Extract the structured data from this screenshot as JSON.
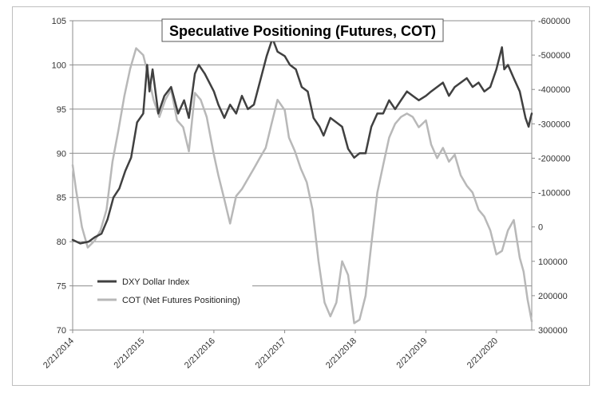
{
  "chart_data": {
    "type": "line",
    "title": "Speculative Positioning (Futures, COT)",
    "grid": true,
    "legend_placement": "bottom-left",
    "x": {
      "start": "2014-02-21",
      "end": "2020-08-21",
      "tick_labels": [
        "2/21/2014",
        "2/21/2015",
        "2/21/2016",
        "2/21/2017",
        "2/21/2018",
        "2/21/2019",
        "2/21/2020"
      ]
    },
    "y_left": {
      "min": 70,
      "max": 105,
      "step": 5,
      "tick_labels": [
        "105",
        "100",
        "95",
        "90",
        "85",
        "80",
        "75",
        "70"
      ]
    },
    "y_right": {
      "min": -600000,
      "max": 300000,
      "reversed": true,
      "step": 100000,
      "tick_labels": [
        "-600000",
        "-500000",
        "-400000",
        "-300000",
        "-200000",
        "-100000",
        "0",
        "100000",
        "200000",
        "300000"
      ]
    },
    "series": [
      {
        "name": "DXY Dollar Index",
        "axis": "left",
        "color": "#404040",
        "points": [
          [
            "2014-02-21",
            80.2
          ],
          [
            "2014-04-01",
            79.8
          ],
          [
            "2014-05-15",
            80.0
          ],
          [
            "2014-06-15",
            80.5
          ],
          [
            "2014-07-20",
            80.9
          ],
          [
            "2014-08-20",
            82.5
          ],
          [
            "2014-09-20",
            85.0
          ],
          [
            "2014-10-20",
            86.0
          ],
          [
            "2014-11-20",
            88.0
          ],
          [
            "2014-12-20",
            89.5
          ],
          [
            "2015-01-20",
            93.5
          ],
          [
            "2015-02-21",
            94.5
          ],
          [
            "2015-03-13",
            100.0
          ],
          [
            "2015-03-25",
            97.0
          ],
          [
            "2015-04-10",
            99.5
          ],
          [
            "2015-05-10",
            94.5
          ],
          [
            "2015-06-10",
            96.5
          ],
          [
            "2015-07-15",
            97.5
          ],
          [
            "2015-08-20",
            94.5
          ],
          [
            "2015-09-20",
            96.0
          ],
          [
            "2015-10-15",
            94.0
          ],
          [
            "2015-11-15",
            99.0
          ],
          [
            "2015-12-05",
            100.0
          ],
          [
            "2016-01-05",
            99.0
          ],
          [
            "2016-02-21",
            97.0
          ],
          [
            "2016-03-15",
            95.5
          ],
          [
            "2016-04-15",
            94.0
          ],
          [
            "2016-05-15",
            95.5
          ],
          [
            "2016-06-15",
            94.5
          ],
          [
            "2016-07-15",
            96.5
          ],
          [
            "2016-08-15",
            95.0
          ],
          [
            "2016-09-15",
            95.5
          ],
          [
            "2016-10-15",
            98.0
          ],
          [
            "2016-11-20",
            101.0
          ],
          [
            "2016-12-20",
            103.0
          ],
          [
            "2017-01-15",
            101.5
          ],
          [
            "2017-02-21",
            101.0
          ],
          [
            "2017-03-20",
            100.0
          ],
          [
            "2017-04-20",
            99.5
          ],
          [
            "2017-05-20",
            97.5
          ],
          [
            "2017-06-20",
            97.0
          ],
          [
            "2017-07-20",
            94.0
          ],
          [
            "2017-08-20",
            93.0
          ],
          [
            "2017-09-10",
            92.0
          ],
          [
            "2017-10-15",
            94.0
          ],
          [
            "2017-11-15",
            93.5
          ],
          [
            "2017-12-15",
            93.0
          ],
          [
            "2018-01-15",
            90.5
          ],
          [
            "2018-02-15",
            89.5
          ],
          [
            "2018-03-15",
            90.0
          ],
          [
            "2018-04-15",
            90.0
          ],
          [
            "2018-05-15",
            93.0
          ],
          [
            "2018-06-15",
            94.5
          ],
          [
            "2018-07-15",
            94.5
          ],
          [
            "2018-08-15",
            96.0
          ],
          [
            "2018-09-15",
            95.0
          ],
          [
            "2018-10-15",
            96.0
          ],
          [
            "2018-11-15",
            97.0
          ],
          [
            "2018-12-15",
            96.5
          ],
          [
            "2019-01-15",
            96.0
          ],
          [
            "2019-02-21",
            96.5
          ],
          [
            "2019-03-20",
            97.0
          ],
          [
            "2019-04-20",
            97.5
          ],
          [
            "2019-05-20",
            98.0
          ],
          [
            "2019-06-20",
            96.5
          ],
          [
            "2019-07-20",
            97.5
          ],
          [
            "2019-08-20",
            98.0
          ],
          [
            "2019-09-20",
            98.5
          ],
          [
            "2019-10-20",
            97.5
          ],
          [
            "2019-11-20",
            98.0
          ],
          [
            "2019-12-20",
            97.0
          ],
          [
            "2020-01-20",
            97.5
          ],
          [
            "2020-02-20",
            99.5
          ],
          [
            "2020-03-20",
            102.0
          ],
          [
            "2020-04-01",
            99.5
          ],
          [
            "2020-04-20",
            100.0
          ],
          [
            "2020-05-20",
            98.5
          ],
          [
            "2020-06-20",
            97.0
          ],
          [
            "2020-07-20",
            94.0
          ],
          [
            "2020-08-05",
            93.0
          ],
          [
            "2020-08-15",
            94.0
          ],
          [
            "2020-08-21",
            94.5
          ]
        ]
      },
      {
        "name": "COT (Net Futures Positioning)",
        "axis": "right",
        "color": "#b8b8b8",
        "points": [
          [
            "2014-02-21",
            -180000
          ],
          [
            "2014-03-10",
            -110000
          ],
          [
            "2014-04-10",
            0
          ],
          [
            "2014-05-10",
            60000
          ],
          [
            "2014-06-15",
            40000
          ],
          [
            "2014-07-15",
            10000
          ],
          [
            "2014-08-15",
            -50000
          ],
          [
            "2014-09-15",
            -190000
          ],
          [
            "2014-10-15",
            -280000
          ],
          [
            "2014-11-15",
            -380000
          ],
          [
            "2014-12-15",
            -460000
          ],
          [
            "2015-01-15",
            -520000
          ],
          [
            "2015-02-21",
            -500000
          ],
          [
            "2015-03-15",
            -450000
          ],
          [
            "2015-04-15",
            -370000
          ],
          [
            "2015-05-15",
            -320000
          ],
          [
            "2015-06-15",
            -370000
          ],
          [
            "2015-07-15",
            -400000
          ],
          [
            "2015-08-15",
            -310000
          ],
          [
            "2015-09-15",
            -290000
          ],
          [
            "2015-10-15",
            -220000
          ],
          [
            "2015-11-15",
            -390000
          ],
          [
            "2015-12-15",
            -370000
          ],
          [
            "2016-01-15",
            -320000
          ],
          [
            "2016-02-21",
            -210000
          ],
          [
            "2016-03-15",
            -150000
          ],
          [
            "2016-04-15",
            -80000
          ],
          [
            "2016-05-15",
            -10000
          ],
          [
            "2016-06-15",
            -90000
          ],
          [
            "2016-07-15",
            -110000
          ],
          [
            "2016-08-15",
            -140000
          ],
          [
            "2016-09-15",
            -170000
          ],
          [
            "2016-10-15",
            -200000
          ],
          [
            "2016-11-15",
            -230000
          ],
          [
            "2016-12-15",
            -300000
          ],
          [
            "2017-01-15",
            -370000
          ],
          [
            "2017-02-21",
            -340000
          ],
          [
            "2017-03-15",
            -260000
          ],
          [
            "2017-04-15",
            -220000
          ],
          [
            "2017-05-15",
            -170000
          ],
          [
            "2017-06-15",
            -130000
          ],
          [
            "2017-07-15",
            -50000
          ],
          [
            "2017-08-15",
            100000
          ],
          [
            "2017-09-15",
            220000
          ],
          [
            "2017-10-15",
            260000
          ],
          [
            "2017-11-15",
            220000
          ],
          [
            "2017-12-15",
            100000
          ],
          [
            "2018-01-15",
            140000
          ],
          [
            "2018-02-15",
            280000
          ],
          [
            "2018-03-15",
            270000
          ],
          [
            "2018-04-15",
            200000
          ],
          [
            "2018-05-15",
            50000
          ],
          [
            "2018-06-15",
            -100000
          ],
          [
            "2018-07-15",
            -180000
          ],
          [
            "2018-08-15",
            -260000
          ],
          [
            "2018-09-15",
            -300000
          ],
          [
            "2018-10-15",
            -320000
          ],
          [
            "2018-11-15",
            -330000
          ],
          [
            "2018-12-15",
            -320000
          ],
          [
            "2019-01-15",
            -290000
          ],
          [
            "2019-02-21",
            -310000
          ],
          [
            "2019-03-20",
            -240000
          ],
          [
            "2019-04-20",
            -200000
          ],
          [
            "2019-05-20",
            -230000
          ],
          [
            "2019-06-20",
            -190000
          ],
          [
            "2019-07-20",
            -210000
          ],
          [
            "2019-08-20",
            -150000
          ],
          [
            "2019-09-20",
            -120000
          ],
          [
            "2019-10-20",
            -100000
          ],
          [
            "2019-11-20",
            -50000
          ],
          [
            "2019-12-20",
            -30000
          ],
          [
            "2020-01-20",
            10000
          ],
          [
            "2020-02-20",
            80000
          ],
          [
            "2020-03-20",
            70000
          ],
          [
            "2020-04-20",
            10000
          ],
          [
            "2020-05-20",
            -20000
          ],
          [
            "2020-06-20",
            90000
          ],
          [
            "2020-07-10",
            130000
          ],
          [
            "2020-07-30",
            210000
          ],
          [
            "2020-08-21",
            275000
          ]
        ]
      }
    ]
  }
}
